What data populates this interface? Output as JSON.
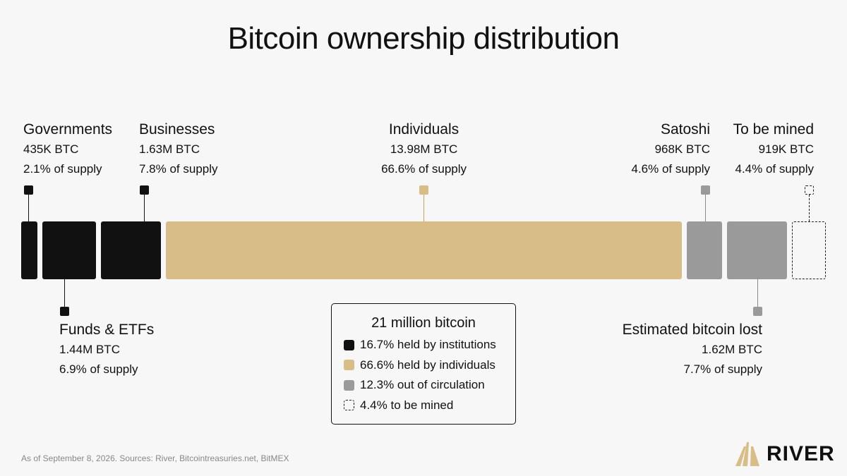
{
  "page": {
    "title": "Bitcoin ownership distribution",
    "footnote": "As of September 8, 2026. Sources: River, Bitcointreasuries.net, BitMEX",
    "logo_text": "RIVER"
  },
  "colors": {
    "institutions": "#111111",
    "individuals": "#d9bd86",
    "out_of_circulation": "#9a9a9a",
    "to_be_mined_border": "#222222",
    "connector_dark": "#111111",
    "connector_gold": "#c9a45c",
    "connector_gray": "#8a8a8a"
  },
  "chart_data": {
    "type": "bar",
    "title": "Bitcoin ownership distribution",
    "total_label": "21 million bitcoin",
    "segments": [
      {
        "key": "governments",
        "name": "Governments",
        "btc": "435K BTC",
        "pct": "2.1% of supply",
        "value": 2.1,
        "group": "institutions"
      },
      {
        "key": "funds",
        "name": "Funds & ETFs",
        "btc": "1.44M BTC",
        "pct": "6.9% of supply",
        "value": 6.9,
        "group": "institutions"
      },
      {
        "key": "businesses",
        "name": "Businesses",
        "btc": "1.63M BTC",
        "pct": "7.8% of supply",
        "value": 7.8,
        "group": "institutions"
      },
      {
        "key": "individuals",
        "name": "Individuals",
        "btc": "13.98M BTC",
        "pct": "66.6% of supply",
        "value": 66.6,
        "group": "individuals"
      },
      {
        "key": "satoshi",
        "name": "Satoshi",
        "btc": "968K BTC",
        "pct": "4.6% of supply",
        "value": 4.6,
        "group": "out_of_circulation"
      },
      {
        "key": "lost",
        "name": "Estimated bitcoin lost",
        "btc": "1.62M BTC",
        "pct": "7.7% of supply",
        "value": 7.7,
        "group": "out_of_circulation"
      },
      {
        "key": "mined",
        "name": "To be mined",
        "btc": "919K BTC",
        "pct": "4.4% of supply",
        "value": 4.4,
        "group": "to_be_mined"
      }
    ],
    "legend": [
      {
        "group": "institutions",
        "label": "16.7% held by institutions"
      },
      {
        "group": "individuals",
        "label": "66.6% held by individuals"
      },
      {
        "group": "out_of_circulation",
        "label": "12.3% out of circulation"
      },
      {
        "group": "to_be_mined",
        "label": "4.4% to be mined"
      }
    ]
  }
}
